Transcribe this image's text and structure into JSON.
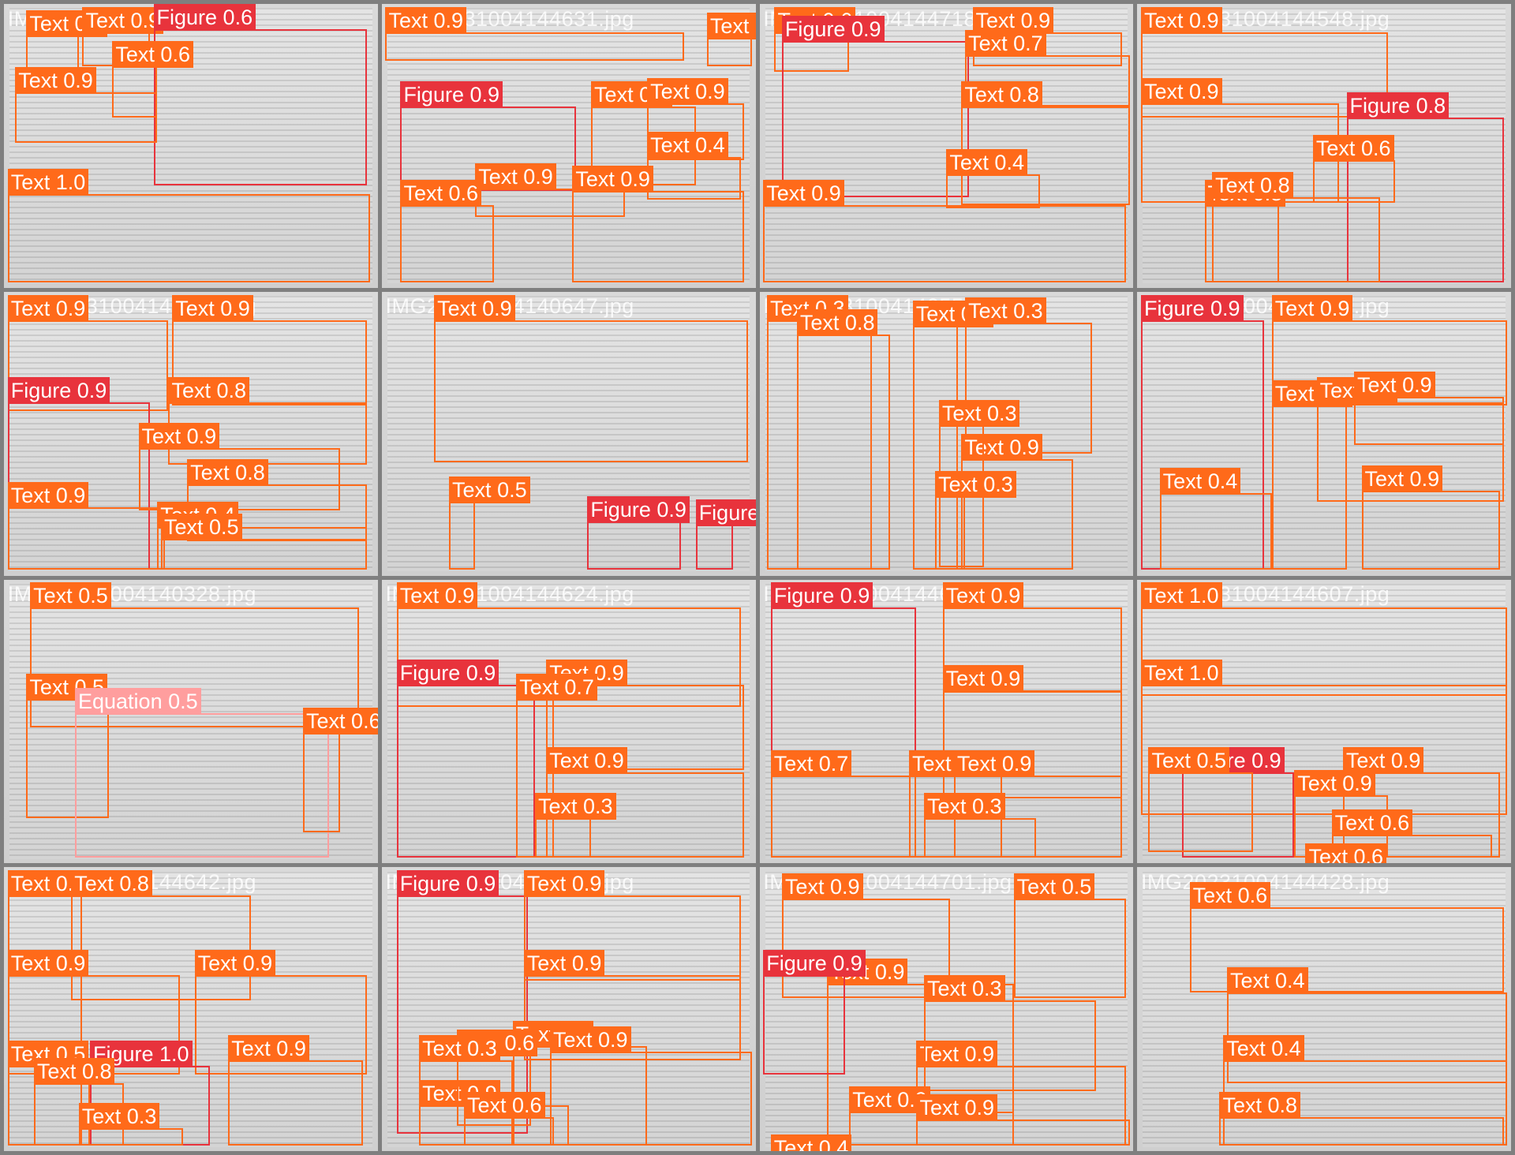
{
  "colors": {
    "Text": "#ff6a1a",
    "Figure": "#e8333c",
    "Equation": "#ff9e9e"
  },
  "tiles": [
    {
      "filename": "IMG20231004144617.jpg",
      "boxes": [
        {
          "c": "Text",
          "s": "0.9"
        },
        {
          "c": "Text",
          "s": "0.9"
        },
        {
          "c": "Figure",
          "s": "0.6"
        },
        {
          "c": "Text",
          "s": "0.6"
        },
        {
          "c": "Text",
          "s": "0.9"
        },
        {
          "c": "Text",
          "s": "1.0"
        }
      ]
    },
    {
      "filename": "IMG20231004144631.jpg",
      "boxes": [
        {
          "c": "Text",
          "s": "0.9"
        },
        {
          "c": "Text",
          "s": "0.9"
        },
        {
          "c": "Figure",
          "s": "0.9"
        },
        {
          "c": "Text",
          "s": "0.9"
        },
        {
          "c": "Text",
          "s": "0.9"
        },
        {
          "c": "Text",
          "s": "0.4"
        },
        {
          "c": "Text",
          "s": "0.9"
        },
        {
          "c": "Text",
          "s": "0.9"
        },
        {
          "c": "Text",
          "s": "0.6"
        }
      ]
    },
    {
      "filename": "IMG20231004144718.jpg",
      "boxes": [
        {
          "c": "Text",
          "s": "0.6"
        },
        {
          "c": "Figure",
          "s": "0.9"
        },
        {
          "c": "Text",
          "s": "0.9"
        },
        {
          "c": "Text",
          "s": "0.7"
        },
        {
          "c": "Text",
          "s": "0.8"
        },
        {
          "c": "Text",
          "s": "0.4"
        },
        {
          "c": "Text",
          "s": "0.9"
        }
      ]
    },
    {
      "filename": "IMG20231004144548.jpg",
      "boxes": [
        {
          "c": "Text",
          "s": "0.9"
        },
        {
          "c": "Text",
          "s": "0.9"
        },
        {
          "c": "Figure",
          "s": "0.8"
        },
        {
          "c": "Text",
          "s": "0.6"
        },
        {
          "c": "Text",
          "s": "0.8"
        },
        {
          "c": "Text",
          "s": "0.8"
        }
      ]
    },
    {
      "filename": "IMG20231004144704.jpg",
      "boxes": [
        {
          "c": "Text",
          "s": "0.9"
        },
        {
          "c": "Text",
          "s": "0.9"
        },
        {
          "c": "Figure",
          "s": "0.9"
        },
        {
          "c": "Text",
          "s": "0.8"
        },
        {
          "c": "Text",
          "s": "0.9"
        },
        {
          "c": "Text",
          "s": "0.8"
        },
        {
          "c": "Text",
          "s": "0.9"
        },
        {
          "c": "Text",
          "s": "0.4"
        },
        {
          "c": "Text",
          "s": "0.5"
        }
      ]
    },
    {
      "filename": "IMG20231004140647.jpg",
      "boxes": [
        {
          "c": "Text",
          "s": "0.9"
        },
        {
          "c": "Text",
          "s": "0.5"
        },
        {
          "c": "Figure",
          "s": "0.9"
        },
        {
          "c": "Figure",
          "s": "0.7"
        }
      ]
    },
    {
      "filename": "IMG20231004140559.jpg",
      "boxes": [
        {
          "c": "Text",
          "s": "0.3"
        },
        {
          "c": "Text",
          "s": "0.8"
        },
        {
          "c": "Text",
          "s": "0.8"
        },
        {
          "c": "Text",
          "s": "0.3"
        },
        {
          "c": "Text",
          "s": "0.9"
        },
        {
          "c": "Text",
          "s": "0.3"
        },
        {
          "c": "Text",
          "s": "0.3"
        }
      ]
    },
    {
      "filename": "IMG20231004144519.jpg",
      "boxes": [
        {
          "c": "Figure",
          "s": "0.9"
        },
        {
          "c": "Text",
          "s": "0.9"
        },
        {
          "c": "Text",
          "s": "0.6"
        },
        {
          "c": "Text",
          "s": "0.9"
        },
        {
          "c": "Text",
          "s": "0.9"
        },
        {
          "c": "Text",
          "s": "0.9"
        },
        {
          "c": "Text",
          "s": "0.4"
        }
      ]
    },
    {
      "filename": "IMG20231004140328.jpg",
      "boxes": [
        {
          "c": "Text",
          "s": "0.5"
        },
        {
          "c": "Text",
          "s": "0.5"
        },
        {
          "c": "Equation",
          "s": "0.5"
        },
        {
          "c": "Text",
          "s": "0.6"
        }
      ]
    },
    {
      "filename": "IMG20231004144624.jpg",
      "boxes": [
        {
          "c": "Text",
          "s": "0.9"
        },
        {
          "c": "Figure",
          "s": "0.9"
        },
        {
          "c": "Text",
          "s": "0.9"
        },
        {
          "c": "Text",
          "s": "0.7"
        },
        {
          "c": "Text",
          "s": "0.9"
        },
        {
          "c": "Text",
          "s": "0.3"
        }
      ]
    },
    {
      "filename": "IMG20231004144639.jpg",
      "boxes": [
        {
          "c": "Figure",
          "s": "0.9"
        },
        {
          "c": "Text",
          "s": "0.9"
        },
        {
          "c": "Text",
          "s": "0.9"
        },
        {
          "c": "Text",
          "s": "0.7"
        },
        {
          "c": "Text",
          "s": "0.8"
        },
        {
          "c": "Text",
          "s": "0.9"
        },
        {
          "c": "Text",
          "s": "0.3"
        }
      ]
    },
    {
      "filename": "IMG20231004144607.jpg",
      "boxes": [
        {
          "c": "Text",
          "s": "1.0"
        },
        {
          "c": "Text",
          "s": "1.0"
        },
        {
          "c": "Figure",
          "s": "0.9"
        },
        {
          "c": "Text",
          "s": "0.5"
        },
        {
          "c": "Text",
          "s": "0.9"
        },
        {
          "c": "Text",
          "s": "0.9"
        },
        {
          "c": "Text",
          "s": "0.6"
        },
        {
          "c": "Text",
          "s": "0.6"
        }
      ]
    },
    {
      "filename": "IMG20231004144642.jpg",
      "boxes": [
        {
          "c": "Text",
          "s": "0.8"
        },
        {
          "c": "Text",
          "s": "0.8"
        },
        {
          "c": "Text",
          "s": "0.9"
        },
        {
          "c": "Text",
          "s": "0.9"
        },
        {
          "c": "Figure",
          "s": "1.0"
        },
        {
          "c": "Text",
          "s": "0.9"
        },
        {
          "c": "Text",
          "s": "0.5"
        },
        {
          "c": "Text",
          "s": "0.8"
        },
        {
          "c": "Text",
          "s": "0.3"
        }
      ]
    },
    {
      "filename": "IMG20231004144814.jpg",
      "boxes": [
        {
          "c": "Figure",
          "s": "0.9"
        },
        {
          "c": "Text",
          "s": "0.9"
        },
        {
          "c": "Text",
          "s": "0.9"
        },
        {
          "c": "Text",
          "s": "0.8"
        },
        {
          "c": "Text",
          "s": "0.9"
        },
        {
          "c": "Text",
          "s": "0.9"
        },
        {
          "c": "Text",
          "s": "0.6"
        },
        {
          "c": "Text",
          "s": "0.3"
        },
        {
          "c": "Text",
          "s": "0.6"
        }
      ]
    },
    {
      "filename": "IMG20231004144701.jpg",
      "boxes": [
        {
          "c": "Text",
          "s": "0.9"
        },
        {
          "c": "Text",
          "s": "0.5"
        },
        {
          "c": "Text",
          "s": "0.9"
        },
        {
          "c": "Text",
          "s": "0.9"
        },
        {
          "c": "Text",
          "s": "0.9"
        },
        {
          "c": "Figure",
          "s": "0.9"
        },
        {
          "c": "Text",
          "s": "0.3"
        },
        {
          "c": "Text",
          "s": "0.9"
        },
        {
          "c": "Text",
          "s": "0.4"
        }
      ]
    },
    {
      "filename": "IMG20231004144428.jpg",
      "boxes": [
        {
          "c": "Text",
          "s": "0.6"
        },
        {
          "c": "Text",
          "s": "0.4"
        },
        {
          "c": "Text",
          "s": "0.4"
        },
        {
          "c": "Text",
          "s": "0.8"
        }
      ]
    }
  ]
}
